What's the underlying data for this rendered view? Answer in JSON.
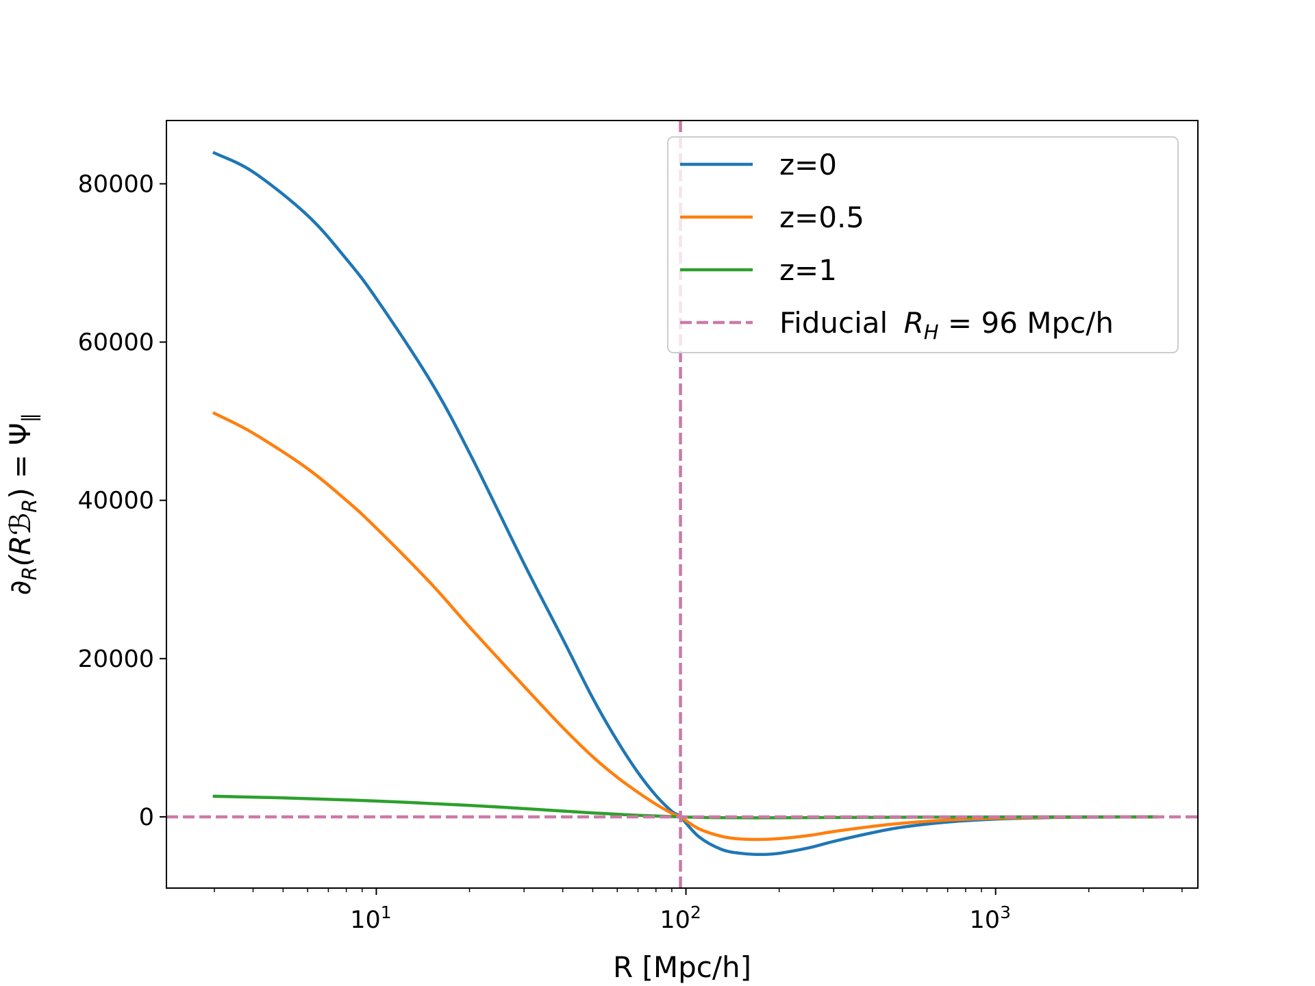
{
  "chart_data": {
    "type": "line",
    "xscale": "log",
    "xlim": [
      2.1,
      4500
    ],
    "ylim": [
      -9000,
      88000
    ],
    "xlabel": "R [Mpc/h]",
    "ylabel_parts": [
      "∂",
      "R",
      "(R",
      "ℬ",
      "R",
      ") = Ψ",
      "∥"
    ],
    "x_ticks": [
      {
        "value": 10,
        "base": "10",
        "exp": "1"
      },
      {
        "value": 100,
        "base": "10",
        "exp": "2"
      },
      {
        "value": 1000,
        "base": "10",
        "exp": "3"
      }
    ],
    "y_ticks": [
      {
        "value": 0,
        "label": "0"
      },
      {
        "value": 20000,
        "label": "20000"
      },
      {
        "value": 40000,
        "label": "40000"
      },
      {
        "value": 60000,
        "label": "60000"
      },
      {
        "value": 80000,
        "label": "80000"
      }
    ],
    "series": [
      {
        "name": "z=0",
        "color": "#1f77b4",
        "x": [
          3,
          4,
          6,
          8,
          10,
          15,
          20,
          30,
          40,
          50,
          60,
          70,
          80,
          90,
          96,
          110,
          130,
          150,
          175,
          200,
          250,
          300,
          400,
          500,
          700,
          1000,
          1500,
          2000,
          3300
        ],
        "y": [
          83900,
          81500,
          76000,
          70500,
          65500,
          55000,
          46000,
          32000,
          22500,
          15000,
          9600,
          5600,
          2700,
          700,
          0,
          -2500,
          -4100,
          -4600,
          -4750,
          -4600,
          -3900,
          -3100,
          -2000,
          -1300,
          -650,
          -280,
          -90,
          -40,
          -10
        ]
      },
      {
        "name": "z=0.5",
        "color": "#ff7f0e",
        "x": [
          3,
          4,
          6,
          8,
          10,
          15,
          20,
          30,
          40,
          50,
          60,
          70,
          80,
          90,
          96,
          110,
          130,
          150,
          175,
          200,
          250,
          300,
          400,
          500,
          700,
          1000,
          1500,
          2000,
          3300
        ],
        "y": [
          51000,
          48500,
          44000,
          40000,
          36500,
          29500,
          24000,
          16500,
          11300,
          7600,
          5000,
          3100,
          1600,
          450,
          0,
          -1500,
          -2450,
          -2800,
          -2850,
          -2750,
          -2350,
          -1850,
          -1200,
          -800,
          -400,
          -170,
          -55,
          -25,
          -5
        ]
      },
      {
        "name": "z=1",
        "color": "#2ca02c",
        "x": [
          3,
          5,
          10,
          20,
          30,
          50,
          70,
          96,
          130,
          200,
          300,
          500,
          1000,
          2000,
          3300
        ],
        "y": [
          2600,
          2400,
          2000,
          1450,
          1050,
          500,
          200,
          0,
          -100,
          -110,
          -80,
          -40,
          -10,
          -3,
          0
        ]
      }
    ],
    "reference_lines": [
      {
        "orientation": "vertical",
        "value": 96,
        "color": "#cc79a7",
        "style": "dashed"
      },
      {
        "orientation": "horizontal",
        "value": 0,
        "color": "#cc79a7",
        "style": "dashed"
      }
    ],
    "legend": {
      "placement": "top-right",
      "entries": [
        {
          "label": "z=0",
          "color": "#1f77b4",
          "dashed": false
        },
        {
          "label": "z=0.5",
          "color": "#ff7f0e",
          "dashed": false
        },
        {
          "label": "z=1",
          "color": "#2ca02c",
          "dashed": false
        },
        {
          "label_prefix": "Fiducial ",
          "label_math_var": "R",
          "label_math_sub": "H",
          "label_suffix": " = 96 Mpc/h",
          "color": "#cc79a7",
          "dashed": true
        }
      ]
    }
  }
}
